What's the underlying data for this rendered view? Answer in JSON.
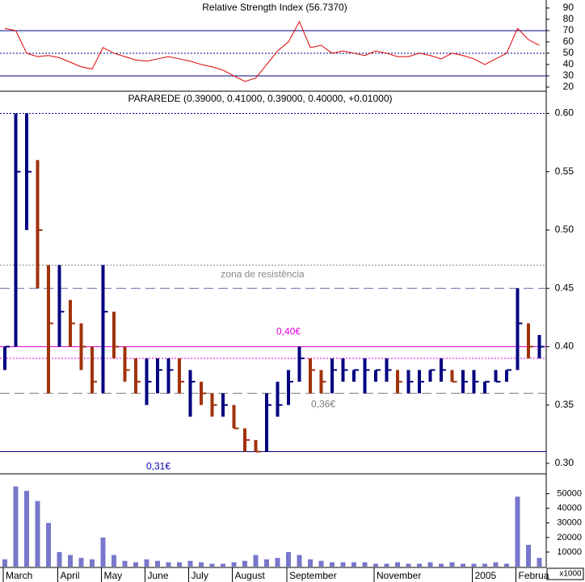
{
  "chart_data": [
    {
      "type": "line",
      "title": "Relative Strength Index (56.7370)",
      "color": "#dd0000",
      "values": [
        72,
        70,
        50,
        47,
        48,
        46,
        42,
        38,
        36,
        55,
        50,
        47,
        44,
        43,
        45,
        47,
        45,
        43,
        40,
        38,
        35,
        30,
        25,
        28,
        40,
        52,
        60,
        78,
        55,
        57,
        50,
        52,
        50,
        48,
        52,
        50,
        47,
        47,
        50,
        48,
        45,
        50,
        48,
        45,
        40,
        45,
        50,
        72,
        62,
        57
      ],
      "ylim": [
        17.1,
        97.1
      ],
      "yticks": [
        20,
        30,
        40,
        50,
        60,
        70,
        80,
        90
      ],
      "lines": [
        {
          "value": 70,
          "style": "solid",
          "color": "#000080"
        },
        {
          "value": 50,
          "style": "dotted",
          "color": "#000080"
        },
        {
          "value": 30,
          "style": "solid",
          "color": "#000080"
        }
      ]
    },
    {
      "type": "ohlc",
      "title": "PARAREDE (0.39000, 0.41000, 0.39000, 0.40000, +0.01000)",
      "up_color": "#000080",
      "down_color": "#a0320a",
      "high": [
        0.4,
        0.6,
        0.6,
        0.56,
        0.47,
        0.47,
        0.44,
        0.42,
        0.4,
        0.47,
        0.43,
        0.4,
        0.39,
        0.39,
        0.39,
        0.39,
        0.39,
        0.38,
        0.37,
        0.36,
        0.36,
        0.35,
        0.33,
        0.32,
        0.36,
        0.37,
        0.38,
        0.4,
        0.39,
        0.38,
        0.39,
        0.39,
        0.38,
        0.39,
        0.38,
        0.39,
        0.38,
        0.38,
        0.38,
        0.38,
        0.39,
        0.38,
        0.38,
        0.38,
        0.37,
        0.38,
        0.38,
        0.45,
        0.42,
        0.41
      ],
      "low": [
        0.38,
        0.4,
        0.5,
        0.45,
        0.36,
        0.4,
        0.4,
        0.38,
        0.36,
        0.36,
        0.39,
        0.37,
        0.36,
        0.35,
        0.36,
        0.36,
        0.36,
        0.34,
        0.35,
        0.34,
        0.34,
        0.33,
        0.31,
        0.31,
        0.31,
        0.34,
        0.35,
        0.37,
        0.36,
        0.36,
        0.36,
        0.37,
        0.37,
        0.36,
        0.37,
        0.37,
        0.36,
        0.36,
        0.36,
        0.37,
        0.37,
        0.37,
        0.36,
        0.36,
        0.36,
        0.37,
        0.37,
        0.38,
        0.39,
        0.39
      ],
      "close": [
        0.4,
        0.55,
        0.55,
        0.5,
        0.42,
        0.43,
        0.42,
        0.4,
        0.37,
        0.43,
        0.4,
        0.38,
        0.37,
        0.37,
        0.38,
        0.38,
        0.37,
        0.37,
        0.36,
        0.35,
        0.35,
        0.33,
        0.32,
        0.31,
        0.35,
        0.35,
        0.37,
        0.39,
        0.38,
        0.37,
        0.38,
        0.38,
        0.38,
        0.38,
        0.38,
        0.38,
        0.37,
        0.37,
        0.37,
        0.38,
        0.38,
        0.37,
        0.37,
        0.37,
        0.37,
        0.37,
        0.38,
        0.42,
        0.4,
        0.4
      ],
      "ylim": [
        0.291,
        0.619
      ],
      "yticks": [
        {
          "value": 0.3,
          "label": "0.30"
        },
        {
          "value": 0.35,
          "label": "0.35"
        },
        {
          "value": 0.4,
          "label": "0.40"
        },
        {
          "value": 0.45,
          "label": "0.45"
        },
        {
          "value": 0.5,
          "label": "0.50"
        },
        {
          "value": 0.55,
          "label": "0.55"
        },
        {
          "value": 0.6,
          "label": "0.60"
        }
      ],
      "lines": [
        {
          "value": 0.6,
          "style": "dotted",
          "color": "#0000a0"
        },
        {
          "value": 0.47,
          "style": "dotted",
          "color": "#888888",
          "label": "zona de resistência"
        },
        {
          "value": 0.45,
          "style": "dashed",
          "color": "#6666aa"
        },
        {
          "value": 0.4,
          "style": "solid",
          "color": "#dd00dd",
          "label": "0,40€"
        },
        {
          "value": 0.39,
          "style": "dotted",
          "color": "#dd00dd"
        },
        {
          "value": 0.36,
          "style": "dashed",
          "color": "#777777",
          "label": "0,36€"
        },
        {
          "value": 0.31,
          "style": "solid",
          "color": "#000080",
          "label": "0,31€"
        }
      ]
    },
    {
      "type": "bar",
      "color": "#7777cc",
      "unit_label": "x1000",
      "categories": [
        "March",
        null,
        null,
        null,
        null,
        "April",
        null,
        null,
        null,
        "May",
        null,
        null,
        null,
        "June",
        null,
        null,
        null,
        "July",
        null,
        null,
        null,
        "August",
        null,
        null,
        null,
        null,
        "September",
        null,
        null,
        null,
        null,
        null,
        null,
        null,
        "November",
        null,
        null,
        null,
        null,
        null,
        null,
        null,
        null,
        "2005",
        null,
        null,
        null,
        "Februa",
        null,
        null
      ],
      "values": [
        5000,
        55000,
        52000,
        45000,
        30000,
        10000,
        8000,
        6000,
        5000,
        20000,
        8000,
        4000,
        3000,
        5000,
        4000,
        3000,
        3000,
        4000,
        3000,
        2000,
        2000,
        3000,
        4000,
        8000,
        5000,
        6000,
        10000,
        8000,
        5000,
        4000,
        3000,
        3000,
        3000,
        3000,
        2000,
        2000,
        3000,
        2000,
        2000,
        3000,
        2000,
        3000,
        2000,
        2000,
        2000,
        3000,
        2000,
        48000,
        15000,
        6000
      ],
      "ylim": [
        0,
        62000
      ],
      "yticks": [
        10000,
        20000,
        30000,
        40000,
        50000
      ]
    }
  ]
}
